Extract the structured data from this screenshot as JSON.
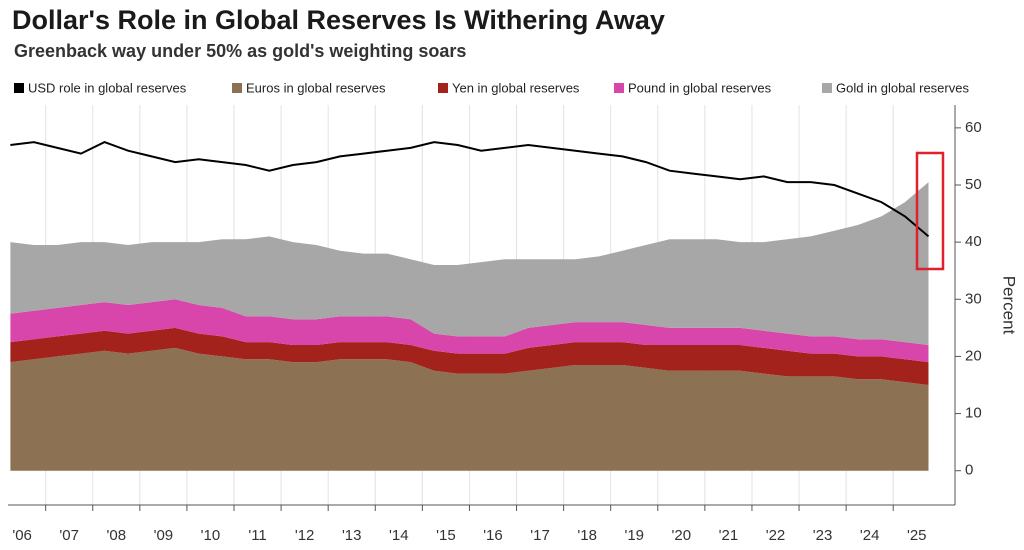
{
  "chart_data": {
    "type": "area",
    "stacked": true,
    "title": "Dollar's Role in Global Reserves Is Withering Away",
    "subtitle": "Greenback way under 50% as gold's weighting soars",
    "y_label": "Percent",
    "x": [
      2006.25,
      2006.75,
      2007.25,
      2007.75,
      2008.25,
      2008.75,
      2009.25,
      2009.75,
      2010.25,
      2010.75,
      2011.25,
      2011.75,
      2012.25,
      2012.75,
      2013.25,
      2013.75,
      2014.25,
      2014.75,
      2015.25,
      2015.75,
      2016.25,
      2016.75,
      2017.25,
      2017.75,
      2018.25,
      2018.75,
      2019.25,
      2019.75,
      2020.25,
      2020.75,
      2021.25,
      2021.75,
      2022.25,
      2022.75,
      2023.25,
      2023.75,
      2024.25,
      2024.75,
      2025.25,
      2025.75
    ],
    "series": [
      {
        "name": "USD role in global reserves",
        "type": "line",
        "color": "#000000",
        "values": [
          57,
          57.5,
          56.5,
          55.5,
          57.5,
          56,
          55,
          54,
          54.5,
          54,
          53.5,
          52.5,
          53.5,
          54,
          55,
          55.5,
          56,
          56.5,
          57.5,
          57,
          56,
          56.5,
          57,
          56.5,
          56,
          55.5,
          55,
          54,
          52.5,
          52,
          51.5,
          51,
          51.5,
          50.5,
          50.5,
          50,
          48.5,
          47,
          44.5,
          41
        ]
      },
      {
        "name": "Euros in global reserves",
        "type": "area",
        "color": "#8c7253",
        "values": [
          19,
          19.5,
          20,
          20.5,
          21,
          20.5,
          21,
          21.5,
          20.5,
          20,
          19.5,
          19.5,
          19,
          19,
          19.5,
          19.5,
          19.5,
          19,
          17.5,
          17,
          17,
          17,
          17.5,
          18,
          18.5,
          18.5,
          18.5,
          18,
          17.5,
          17.5,
          17.5,
          17.5,
          17,
          16.5,
          16.5,
          16.5,
          16,
          16,
          15.5,
          15
        ]
      },
      {
        "name": "Yen in global reserves",
        "type": "area",
        "color": "#a3231c",
        "values": [
          3.5,
          3.5,
          3.5,
          3.5,
          3.5,
          3.5,
          3.5,
          3.5,
          3.5,
          3.5,
          3,
          3,
          3,
          3,
          3,
          3,
          3,
          3,
          3.5,
          3.5,
          3.5,
          3.5,
          4,
          4,
          4,
          4,
          4,
          4,
          4.5,
          4.5,
          4.5,
          4.5,
          4.5,
          4.5,
          4,
          4,
          4,
          4,
          4,
          4
        ]
      },
      {
        "name": "Pound in global reserves",
        "type": "area",
        "color": "#d946ab",
        "values": [
          5,
          5,
          5,
          5,
          5,
          5,
          5,
          5,
          5,
          5,
          4.5,
          4.5,
          4.5,
          4.5,
          4.5,
          4.5,
          4.5,
          4.5,
          3,
          3,
          3,
          3,
          3.5,
          3.5,
          3.5,
          3.5,
          3.5,
          3.5,
          3,
          3,
          3,
          3,
          3,
          3,
          3,
          3,
          3,
          3,
          3,
          3
        ]
      },
      {
        "name": "Gold in global reserves",
        "type": "area",
        "color": "#a7a7a7",
        "values": [
          12.5,
          11.5,
          11,
          11,
          10.5,
          10.5,
          10.5,
          10,
          11,
          12,
          13.5,
          14,
          13.5,
          13,
          11.5,
          11,
          11,
          10.5,
          12,
          12.5,
          13,
          13.5,
          12,
          11.5,
          11,
          11.5,
          12.5,
          14,
          15.5,
          15.5,
          15.5,
          15,
          15.5,
          16.5,
          17.5,
          18.5,
          20,
          21.5,
          24.5,
          28.5
        ]
      }
    ],
    "xlim": [
      2006.2,
      2026.1
    ],
    "xticks": [
      {
        "value": 2006.5,
        "label": "'06"
      },
      {
        "value": 2007.5,
        "label": "'07"
      },
      {
        "value": 2008.5,
        "label": "'08"
      },
      {
        "value": 2009.5,
        "label": "'09"
      },
      {
        "value": 2010.5,
        "label": "'10"
      },
      {
        "value": 2011.5,
        "label": "'11"
      },
      {
        "value": 2012.5,
        "label": "'12"
      },
      {
        "value": 2013.5,
        "label": "'13"
      },
      {
        "value": 2014.5,
        "label": "'14"
      },
      {
        "value": 2015.5,
        "label": "'15"
      },
      {
        "value": 2016.5,
        "label": "'16"
      },
      {
        "value": 2017.5,
        "label": "'17"
      },
      {
        "value": 2018.5,
        "label": "'18"
      },
      {
        "value": 2019.5,
        "label": "'19"
      },
      {
        "value": 2020.5,
        "label": "'20"
      },
      {
        "value": 2021.5,
        "label": "'21"
      },
      {
        "value": 2022.5,
        "label": "'22"
      },
      {
        "value": 2023.5,
        "label": "'23"
      },
      {
        "value": 2024.5,
        "label": "'24"
      },
      {
        "value": 2025.5,
        "label": "'25"
      }
    ],
    "ylim": [
      -6,
      64
    ],
    "yticks": [
      0,
      10,
      20,
      30,
      40,
      50,
      60
    ],
    "grid": "x",
    "legend": "top"
  }
}
